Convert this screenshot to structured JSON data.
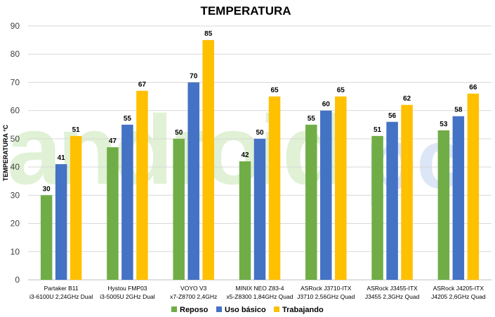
{
  "watermark": {
    "text_green": "android",
    "text_blue": "pc"
  },
  "chart_data": {
    "type": "bar",
    "title": "TEMPERATURA",
    "xlabel": "",
    "ylabel": "TEMPERATURA °C",
    "ylim": [
      0,
      90
    ],
    "yticks": [
      0,
      10,
      20,
      30,
      40,
      50,
      60,
      70,
      80,
      90
    ],
    "grid": true,
    "legend_position": "bottom",
    "categories": [
      {
        "line1": "Partaker B11",
        "line2": "i3-6100U 2,24GHz Dual"
      },
      {
        "line1": "Hystou FMP03",
        "line2": "i3-5005U 2GHz Dual"
      },
      {
        "line1": "VOYO V3",
        "line2": "x7-Z8700 2,4GHz"
      },
      {
        "line1": "MINIX NEO Z83-4",
        "line2": "x5-Z8300 1,84GHz Quad"
      },
      {
        "line1": "ASRock J3710-ITX",
        "line2": "J3710 2,56GHz Quad"
      },
      {
        "line1": "ASRock J3455-ITX",
        "line2": "J3455 2,3GHz Quad"
      },
      {
        "line1": "ASRock J4205-ITX",
        "line2": "J4205 2,6GHz Quad"
      }
    ],
    "series": [
      {
        "name": "Reposo",
        "color": "#70ad47",
        "values": [
          30,
          47,
          50,
          42,
          55,
          51,
          53
        ]
      },
      {
        "name": "Uso básico",
        "color": "#4472c4",
        "values": [
          41,
          55,
          70,
          50,
          60,
          56,
          58
        ]
      },
      {
        "name": "Trabajando",
        "color": "#ffc000",
        "values": [
          51,
          67,
          85,
          65,
          65,
          62,
          66
        ]
      }
    ]
  }
}
